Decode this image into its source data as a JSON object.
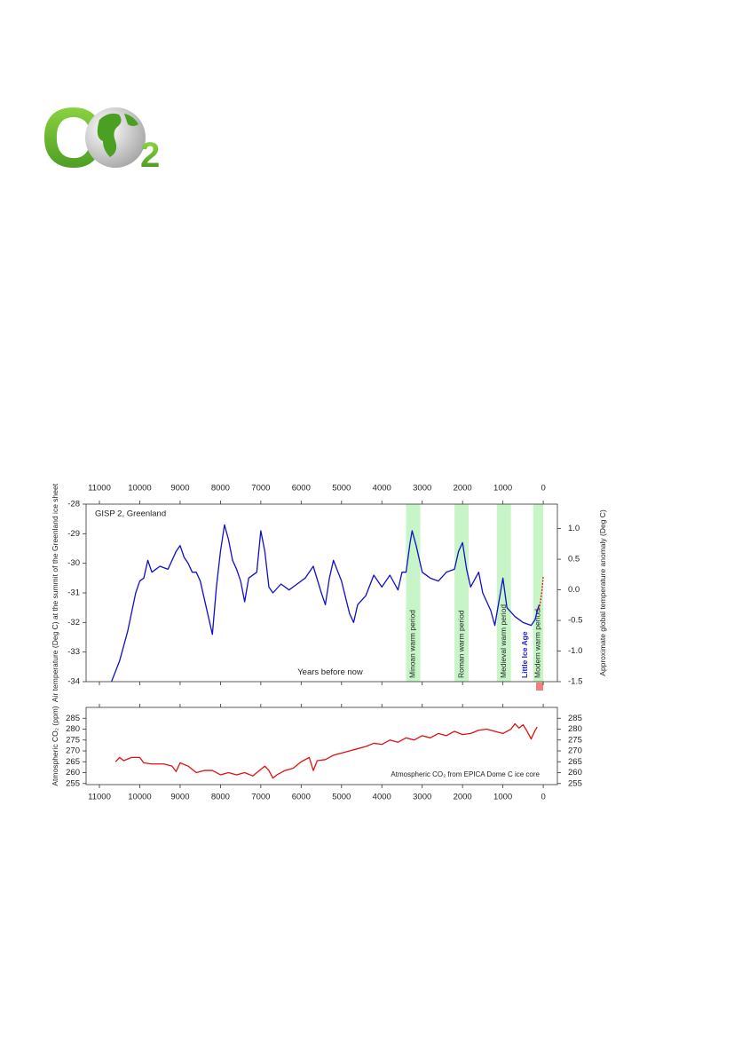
{
  "logo": {
    "letters": [
      "C",
      "2"
    ]
  },
  "chart_data": [
    {
      "type": "line",
      "title": "GISP 2, Greenland",
      "xlabel": "Years before now",
      "ylabel": "Air temperature (Deg C) at the summit of the Greenland ice sheet",
      "y2label": "Approximate global temperature anomaly (Deg C)",
      "xlim": [
        11330,
        -350
      ],
      "xticks": [
        11000,
        10000,
        9000,
        8000,
        7000,
        6000,
        5000,
        4000,
        3000,
        2000,
        1000,
        0
      ],
      "ylim": [
        -34,
        -28
      ],
      "yticks": [
        -34,
        -33,
        -32,
        -31,
        -30,
        -29,
        -28
      ],
      "y2lim": [
        -1.5,
        1.4
      ],
      "y2ticks": [
        -1.5,
        {
          "value": -1,
          "label": "-1.0"
        },
        -0.5,
        {
          "value": 0,
          "label": "0.0"
        },
        0.5,
        {
          "value": 1,
          "label": "1.0"
        }
      ],
      "bands": [
        {
          "label": "Minoan warm period",
          "from": 3400,
          "to": 3050
        },
        {
          "label": "Roman warm period",
          "from": 2200,
          "to": 1850
        },
        {
          "label": "Medieval warm period",
          "from": 1150,
          "to": 800
        },
        {
          "label": "Modern warm period",
          "from": 250,
          "to": 0
        }
      ],
      "band_color": "#c8f5c8",
      "annotations": [
        {
          "text": "Little Ice Age",
          "x": 450,
          "color": "#2222cc"
        }
      ],
      "series": [
        {
          "color": "#1010c8",
          "x": [
            10700,
            10500,
            10300,
            10100,
            10000,
            9900,
            9800,
            9700,
            9500,
            9300,
            9100,
            9000,
            8900,
            8800,
            8700,
            8600,
            8500,
            8400,
            8300,
            8200,
            8100,
            8000,
            7900,
            7800,
            7700,
            7600,
            7500,
            7400,
            7300,
            7100,
            7000,
            6900,
            6800,
            6700,
            6500,
            6300,
            6100,
            5900,
            5700,
            5500,
            5400,
            5300,
            5200,
            5000,
            4800,
            4700,
            4600,
            4400,
            4200,
            4000,
            3800,
            3600,
            3500,
            3400,
            3300,
            3250,
            3150,
            3000,
            2800,
            2600,
            2400,
            2200,
            2100,
            2000,
            1900,
            1800,
            1600,
            1500,
            1300,
            1200,
            1100,
            1000,
            900,
            700,
            500,
            300,
            200,
            150,
            100
          ],
          "values": [
            -34.0,
            -33.3,
            -32.3,
            -31.0,
            -30.6,
            -30.5,
            -29.9,
            -30.3,
            -30.1,
            -30.2,
            -29.6,
            -29.4,
            -29.8,
            -30.0,
            -30.3,
            -30.3,
            -30.6,
            -31.2,
            -31.8,
            -32.4,
            -30.8,
            -29.6,
            -28.7,
            -29.2,
            -29.9,
            -30.2,
            -30.6,
            -31.3,
            -30.5,
            -30.3,
            -28.9,
            -29.6,
            -30.8,
            -31.0,
            -30.7,
            -30.9,
            -30.7,
            -30.5,
            -30.1,
            -31.0,
            -31.4,
            -30.5,
            -29.9,
            -30.6,
            -31.7,
            -32.0,
            -31.4,
            -31.1,
            -30.4,
            -30.8,
            -30.4,
            -30.9,
            -30.3,
            -30.3,
            -29.3,
            -28.9,
            -29.4,
            -30.3,
            -30.5,
            -30.6,
            -30.3,
            -30.2,
            -29.6,
            -29.3,
            -30.2,
            -30.8,
            -30.3,
            -31.0,
            -31.6,
            -32.1,
            -31.3,
            -30.5,
            -31.5,
            -31.8,
            -32.0,
            -32.1,
            -31.9,
            -31.6,
            -31.4
          ]
        },
        {
          "color": "#e01010",
          "axis": "y2",
          "dash": true,
          "x": [
            100,
            60,
            30,
            0
          ],
          "values": [
            -0.32,
            -0.15,
            0.0,
            0.22
          ]
        }
      ]
    },
    {
      "type": "line",
      "ylabel": "Atmospheric CO₂ (ppm)",
      "annotation": "Atmospheric CO₂ from EPICA Dome C ice core",
      "xlim": [
        11330,
        -350
      ],
      "xticks": [
        11000,
        10000,
        9000,
        8000,
        7000,
        6000,
        5000,
        4000,
        3000,
        2000,
        1000,
        0
      ],
      "ylim": [
        254.5,
        290
      ],
      "yticks": [
        255,
        260,
        265,
        270,
        275,
        280,
        285
      ],
      "y2lim": [
        254.5,
        290
      ],
      "y2ticks": [
        255,
        260,
        265,
        270,
        275,
        280,
        285
      ],
      "series": [
        {
          "color": "#e01010",
          "x": [
            10600,
            10500,
            10400,
            10200,
            10000,
            9900,
            9700,
            9400,
            9200,
            9100,
            9000,
            8800,
            8600,
            8400,
            8200,
            8000,
            7800,
            7600,
            7400,
            7200,
            7000,
            6900,
            6800,
            6700,
            6600,
            6400,
            6200,
            6000,
            5800,
            5700,
            5600,
            5400,
            5200,
            5000,
            4800,
            4600,
            4400,
            4200,
            4000,
            3800,
            3600,
            3400,
            3200,
            3000,
            2800,
            2600,
            2400,
            2200,
            2000,
            1800,
            1600,
            1400,
            1200,
            1000,
            800,
            700,
            600,
            500,
            400,
            300,
            200,
            150
          ],
          "values": [
            265,
            267,
            265.5,
            267,
            267,
            264.5,
            264,
            264,
            263,
            260.5,
            264.5,
            263,
            260,
            261,
            261,
            259,
            260,
            259,
            260,
            258.5,
            261.5,
            263,
            261,
            257.5,
            259,
            261,
            262,
            265,
            267,
            261,
            265.5,
            266,
            268,
            269,
            270,
            271,
            272,
            273.5,
            273,
            275,
            274,
            276,
            275,
            277,
            276,
            278,
            277,
            279,
            277.5,
            278,
            279.5,
            280,
            279,
            278,
            280,
            282.5,
            280.5,
            282,
            279,
            275.5,
            279.5,
            281
          ]
        }
      ]
    }
  ]
}
